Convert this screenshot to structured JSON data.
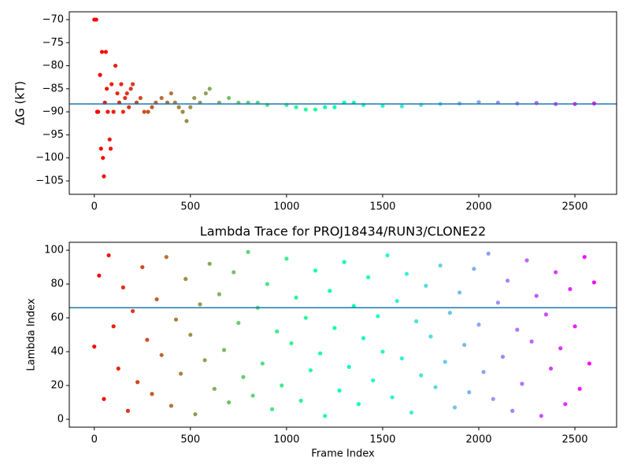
{
  "chart_data": [
    {
      "type": "scatter",
      "ylabel": "ΔG (kT)",
      "colormap": "rainbow_r",
      "hline": -88.3,
      "hline_color": "#1f77b4",
      "x": [
        0,
        10,
        15,
        20,
        30,
        35,
        40,
        45,
        50,
        55,
        60,
        65,
        70,
        80,
        85,
        90,
        100,
        110,
        120,
        130,
        140,
        150,
        160,
        170,
        180,
        190,
        200,
        220,
        240,
        260,
        280,
        300,
        320,
        350,
        380,
        400,
        420,
        440,
        460,
        480,
        500,
        520,
        550,
        580,
        600,
        650,
        700,
        750,
        800,
        850,
        900,
        1000,
        1050,
        1100,
        1150,
        1200,
        1250,
        1300,
        1350,
        1400,
        1500,
        1600,
        1700,
        1800,
        1900,
        2000,
        2100,
        2200,
        2300,
        2400,
        2500,
        2600
      ],
      "values": [
        -70,
        -70,
        -90,
        -90,
        -82,
        -98,
        -77,
        -100,
        -104,
        -88,
        -77,
        -85,
        -90,
        -96,
        -98,
        -84,
        -90,
        -80,
        -86,
        -88,
        -84,
        -90,
        -87,
        -86,
        -89,
        -85,
        -84,
        -88,
        -87,
        -90,
        -90,
        -89,
        -88,
        -87,
        -88,
        -86,
        -88,
        -89,
        -90,
        -92,
        -89,
        -87,
        -88,
        -86,
        -85,
        -88,
        -87,
        -88,
        -88,
        -88,
        -88.5,
        -88.5,
        -89,
        -89.5,
        -89.5,
        -89,
        -89,
        -88,
        -88,
        -88.5,
        -88.7,
        -88.8,
        -88.5,
        -88.3,
        -88.2,
        -87.9,
        -88,
        -88.2,
        -88.1,
        -88.3,
        -88.3,
        -88.2
      ],
      "xlim": [
        -130,
        2717
      ],
      "ylim": [
        -107.9,
        -68.3
      ],
      "xticks": [
        0,
        500,
        1000,
        1500,
        2000,
        2500
      ],
      "yticks": [
        {
          "value": -105,
          "label": "−105"
        },
        {
          "value": -100,
          "label": "−100"
        },
        {
          "value": -95,
          "label": "−95"
        },
        {
          "value": -90,
          "label": "−90"
        },
        {
          "value": -85,
          "label": "−85"
        },
        {
          "value": -80,
          "label": "−80"
        },
        {
          "value": -75,
          "label": "−75"
        },
        {
          "value": -70,
          "label": "−70"
        }
      ]
    },
    {
      "type": "scatter",
      "title": "Lambda Trace for PROJ18434/RUN3/CLONE22",
      "xlabel": "Frame Index",
      "ylabel": "Lambda Index",
      "colormap": "rainbow_r",
      "hline": 66,
      "hline_color": "#1f77b4",
      "x": [
        0,
        25,
        50,
        75,
        100,
        125,
        150,
        175,
        200,
        225,
        250,
        275,
        300,
        325,
        350,
        375,
        400,
        425,
        450,
        475,
        500,
        525,
        550,
        575,
        600,
        625,
        650,
        675,
        700,
        725,
        750,
        775,
        800,
        825,
        850,
        875,
        900,
        925,
        950,
        975,
        1000,
        1025,
        1050,
        1075,
        1100,
        1125,
        1150,
        1175,
        1200,
        1225,
        1250,
        1275,
        1300,
        1325,
        1350,
        1375,
        1400,
        1425,
        1450,
        1475,
        1500,
        1525,
        1550,
        1575,
        1600,
        1625,
        1650,
        1675,
        1700,
        1725,
        1750,
        1775,
        1800,
        1825,
        1850,
        1875,
        1900,
        1925,
        1950,
        1975,
        2000,
        2025,
        2050,
        2075,
        2100,
        2125,
        2150,
        2175,
        2200,
        2225,
        2250,
        2275,
        2300,
        2325,
        2350,
        2375,
        2400,
        2425,
        2450,
        2475,
        2500,
        2525,
        2550,
        2575,
        2600
      ],
      "values": [
        43,
        85,
        12,
        97,
        55,
        30,
        78,
        5,
        64,
        22,
        90,
        47,
        15,
        71,
        38,
        96,
        8,
        59,
        27,
        83,
        50,
        3,
        68,
        35,
        92,
        18,
        74,
        41,
        10,
        87,
        57,
        25,
        99,
        14,
        66,
        33,
        80,
        6,
        52,
        20,
        95,
        45,
        72,
        11,
        60,
        29,
        88,
        39,
        2,
        76,
        54,
        17,
        93,
        31,
        67,
        9,
        48,
        84,
        23,
        61,
        40,
        97,
        13,
        70,
        36,
        86,
        4,
        58,
        26,
        79,
        49,
        19,
        91,
        34,
        63,
        7,
        75,
        44,
        16,
        89,
        56,
        28,
        98,
        12,
        69,
        37,
        82,
        5,
        53,
        21,
        94,
        46,
        73,
        2,
        62,
        30,
        87,
        42,
        9,
        77,
        55,
        18,
        96,
        33,
        81
      ],
      "xlim": [
        -130,
        2717
      ],
      "ylim": [
        -4.65,
        104.7
      ],
      "xticks": [
        0,
        500,
        1000,
        1500,
        2000,
        2500
      ],
      "yticks": [
        0,
        20,
        40,
        60,
        80,
        100
      ]
    }
  ]
}
